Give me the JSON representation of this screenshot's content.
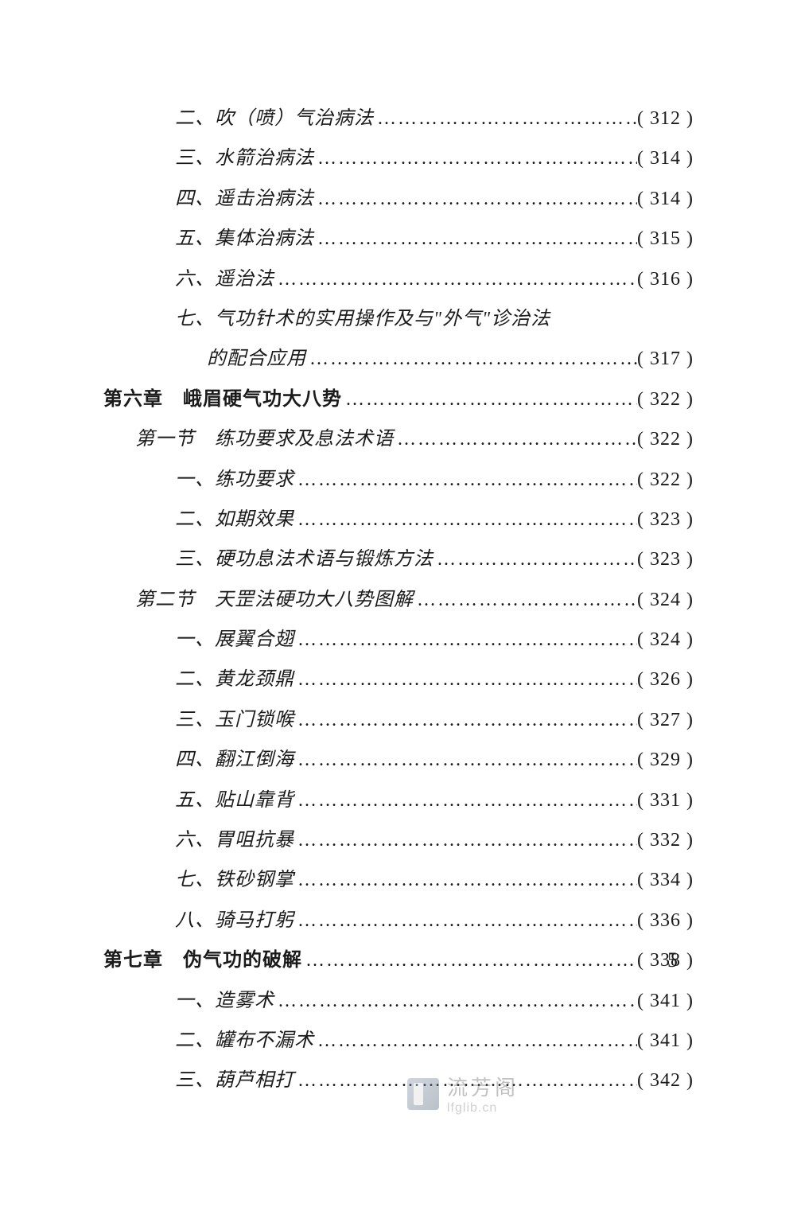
{
  "page_number": "5",
  "watermark": {
    "title": "流芳阁",
    "url": "lfglib.cn"
  },
  "toc_entries": [
    {
      "indent": 2,
      "text": "二、吹（喷）气治病法",
      "page": "( 312 )",
      "bold": false,
      "continuation": false
    },
    {
      "indent": 2,
      "text": "三、水箭治病法",
      "page": "( 314 )",
      "bold": false,
      "continuation": false
    },
    {
      "indent": 2,
      "text": "四、遥击治病法",
      "page": "( 314 )",
      "bold": false,
      "continuation": false
    },
    {
      "indent": 2,
      "text": "五、集体治病法",
      "page": "( 315 )",
      "bold": false,
      "continuation": false
    },
    {
      "indent": 2,
      "text": "六、遥治法",
      "page": "( 316 )",
      "bold": false,
      "continuation": false
    },
    {
      "indent": 2,
      "text": "七、气功针术的实用操作及与\"外气\"诊治法",
      "page": "",
      "bold": false,
      "continuation": false
    },
    {
      "indent": 2,
      "text": "的配合应用",
      "page": "( 317 )",
      "bold": false,
      "continuation": true
    },
    {
      "indent": 0,
      "text": "第六章　峨眉硬气功大八势",
      "page": "( 322 )",
      "bold": true,
      "continuation": false
    },
    {
      "indent": 1,
      "text": "第一节　练功要求及息法术语",
      "page": "( 322 )",
      "bold": false,
      "continuation": false
    },
    {
      "indent": 2,
      "text": "一、练功要求",
      "page": "( 322 )",
      "bold": false,
      "continuation": false
    },
    {
      "indent": 2,
      "text": "二、如期效果",
      "page": "( 323 )",
      "bold": false,
      "continuation": false
    },
    {
      "indent": 2,
      "text": "三、硬功息法术语与锻炼方法",
      "page": "( 323 )",
      "bold": false,
      "continuation": false
    },
    {
      "indent": 1,
      "text": "第二节　天罡法硬功大八势图解",
      "page": "( 324 )",
      "bold": false,
      "continuation": false
    },
    {
      "indent": 2,
      "text": "一、展翼合翅",
      "page": "( 324 )",
      "bold": false,
      "continuation": false
    },
    {
      "indent": 2,
      "text": "二、黄龙颈鼎",
      "page": "( 326 )",
      "bold": false,
      "continuation": false
    },
    {
      "indent": 2,
      "text": "三、玉门锁喉",
      "page": "( 327 )",
      "bold": false,
      "continuation": false
    },
    {
      "indent": 2,
      "text": "四、翻江倒海",
      "page": "( 329 )",
      "bold": false,
      "continuation": false
    },
    {
      "indent": 2,
      "text": "五、贴山靠背",
      "page": "( 331 )",
      "bold": false,
      "continuation": false
    },
    {
      "indent": 2,
      "text": "六、胃咀抗暴",
      "page": "( 332 )",
      "bold": false,
      "continuation": false
    },
    {
      "indent": 2,
      "text": "七、铁砂钢掌",
      "page": "( 334 )",
      "bold": false,
      "continuation": false
    },
    {
      "indent": 2,
      "text": "八、骑马打躬",
      "page": "( 336 )",
      "bold": false,
      "continuation": false
    },
    {
      "indent": 0,
      "text": "第七章　伪气功的破解",
      "page": "( 338 )",
      "bold": true,
      "continuation": false
    },
    {
      "indent": 2,
      "text": "一、造雾术",
      "page": "( 341 )",
      "bold": false,
      "continuation": false
    },
    {
      "indent": 2,
      "text": "二、罐布不漏术",
      "page": "( 341 )",
      "bold": false,
      "continuation": false
    },
    {
      "indent": 2,
      "text": "三、葫芦相打",
      "page": "( 342 )",
      "bold": false,
      "continuation": false
    }
  ]
}
